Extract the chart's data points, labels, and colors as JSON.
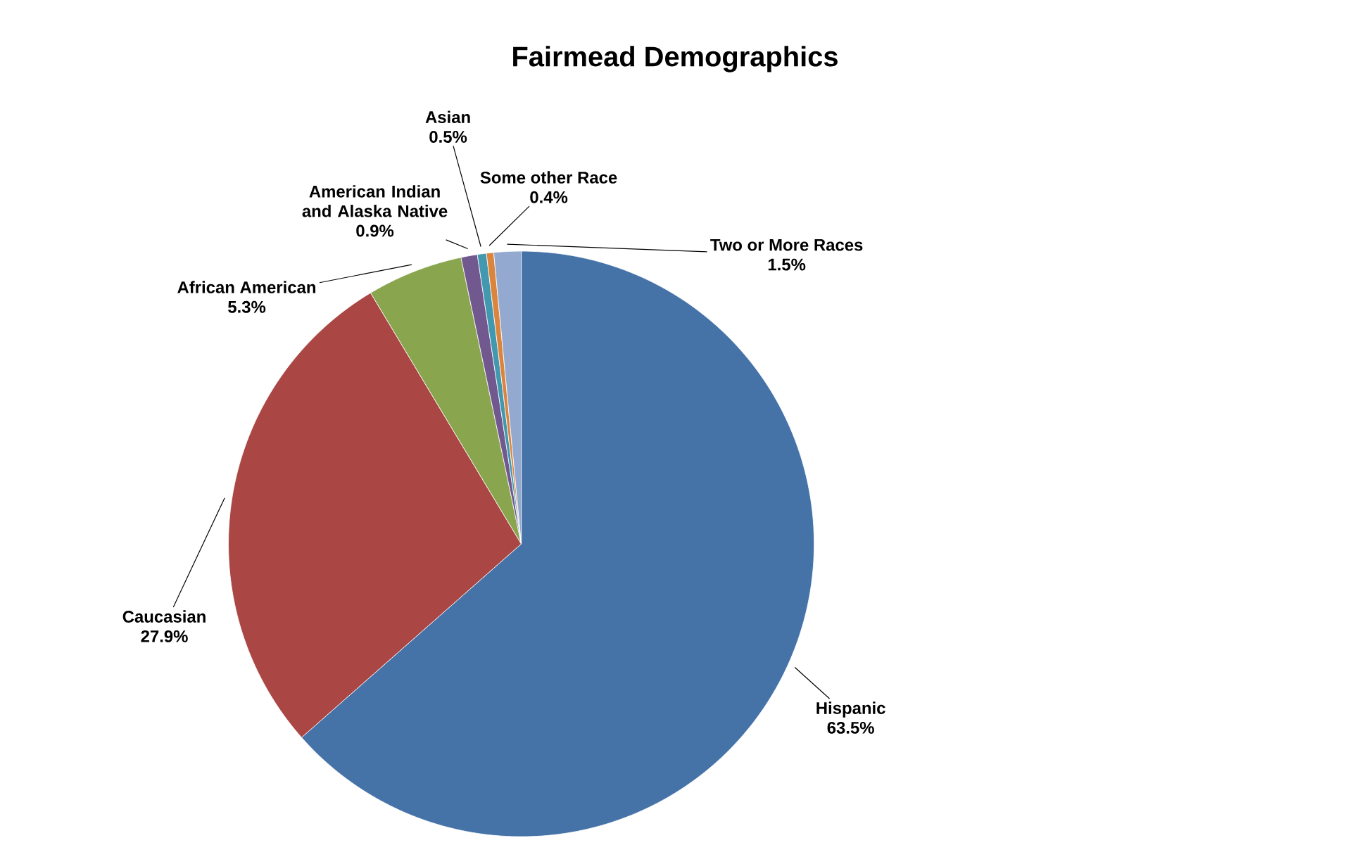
{
  "chart_data": {
    "type": "pie",
    "title": "Fairmead Demographics",
    "categories": [
      "Hispanic",
      "Caucasian",
      "African American",
      "American Indian and Alaska Native",
      "Asian",
      "Some other Race",
      "Two or More Races"
    ],
    "values": [
      63.5,
      27.9,
      5.3,
      0.9,
      0.5,
      0.4,
      1.5
    ],
    "colors": [
      "#4572a7",
      "#aa4643",
      "#89a54e",
      "#71588f",
      "#4198af",
      "#db843d",
      "#93a9cf"
    ],
    "value_labels": [
      "63.5%",
      "27.9%",
      "5.3%",
      "0.9%",
      "0.5%",
      "0.4%",
      "1.5%"
    ]
  }
}
